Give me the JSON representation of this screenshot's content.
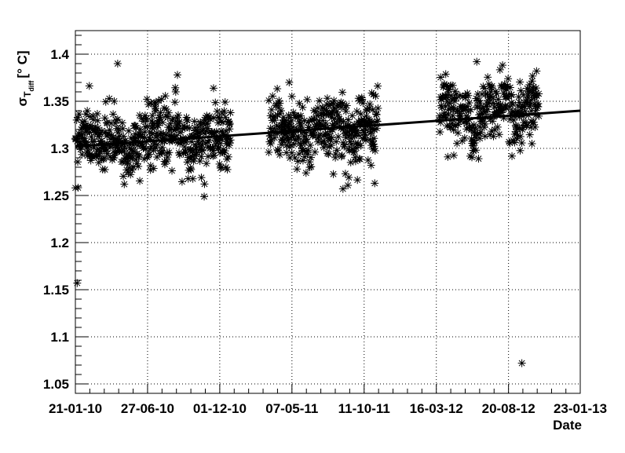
{
  "chart_data": {
    "type": "scatter",
    "title": "",
    "xlabel": "Date",
    "ylabel": "σ_T_diff [° C]",
    "ylabel_parts": {
      "sigma": "σ",
      "sub_t": "T",
      "sub_diff": "diff",
      "unit": "[° C]"
    },
    "x_ticks": [
      "21-01-10",
      "27-06-10",
      "01-12-10",
      "07-05-11",
      "11-10-11",
      "16-03-12",
      "20-08-12",
      "23-01-13"
    ],
    "x_tick_dates": [
      "2010-01-21",
      "2010-06-27",
      "2010-12-01",
      "2011-05-07",
      "2011-10-11",
      "2012-03-16",
      "2012-08-20",
      "2013-01-23"
    ],
    "y_ticks": [
      "1.05",
      "1.1",
      "1.15",
      "1.2",
      "1.25",
      "1.3",
      "1.35",
      "1.4"
    ],
    "xlim": [
      "2010-01-21",
      "2013-01-23"
    ],
    "ylim": [
      1.04,
      1.425
    ],
    "grid": true,
    "fit_line": {
      "start": {
        "x": "2010-01-21",
        "y": 1.302
      },
      "end": {
        "x": "2013-01-23",
        "y": 1.34
      }
    },
    "series": [
      {
        "marker": "asterisk",
        "color": "#000000",
        "segments": [
          {
            "start": "2010-01-21",
            "end": "2010-12-24",
            "center_start": 1.305,
            "center_end": 1.315
          },
          {
            "start": "2011-03-18",
            "end": "2011-11-10",
            "center_start": 1.315,
            "center_end": 1.322
          },
          {
            "start": "2012-03-22",
            "end": "2012-10-25",
            "center_start": 1.333,
            "center_end": 1.345
          }
        ],
        "outliers": [
          {
            "x": "2010-01-25",
            "y": 1.157
          },
          {
            "x": "2010-04-23",
            "y": 1.39
          },
          {
            "x": "2010-08-31",
            "y": 1.378
          },
          {
            "x": "2011-05-01",
            "y": 1.37
          },
          {
            "x": "2012-09-18",
            "y": 1.072
          },
          {
            "x": "2010-10-22",
            "y": 1.269
          },
          {
            "x": "2011-11-03",
            "y": 1.263
          },
          {
            "x": "2011-08-26",
            "y": 1.257
          },
          {
            "x": "2012-04-10",
            "y": 1.291
          },
          {
            "x": "2012-10-10",
            "y": 1.305
          },
          {
            "x": "2012-10-20",
            "y": 1.382
          },
          {
            "x": "2012-06-12",
            "y": 1.392
          }
        ]
      }
    ]
  }
}
